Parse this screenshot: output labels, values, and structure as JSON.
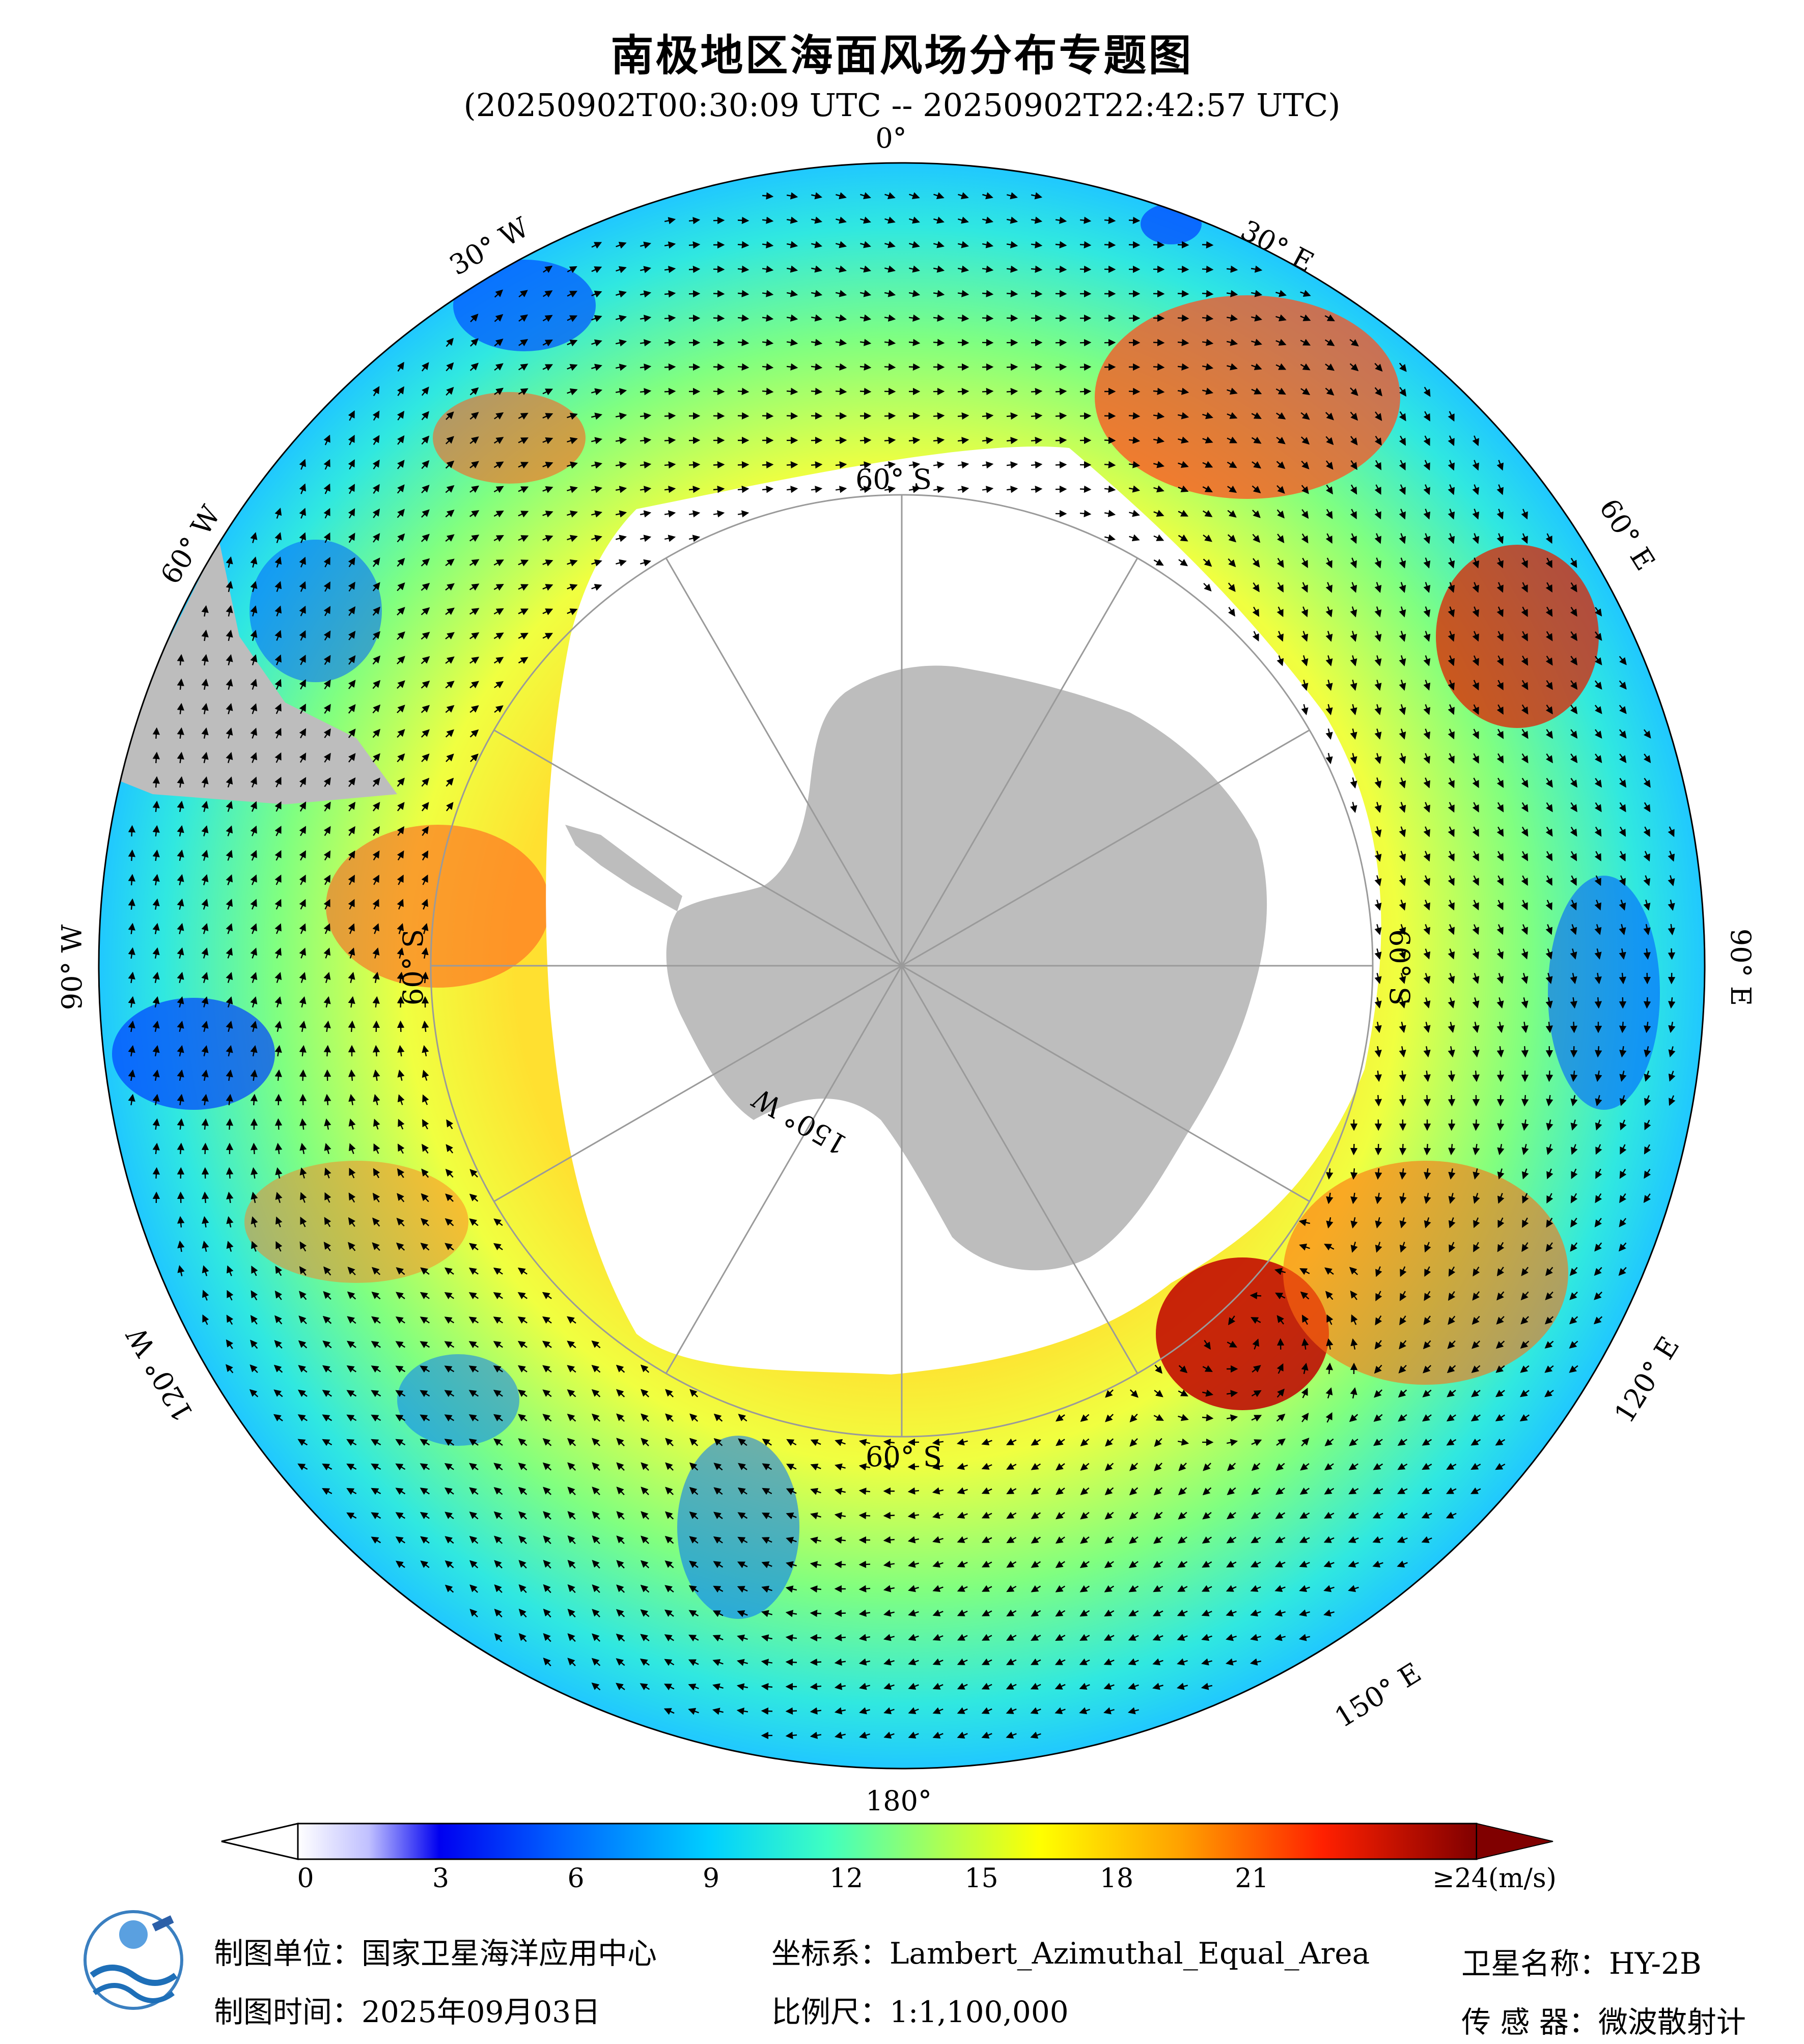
{
  "title": "南极地区海面风场分布专题图",
  "subtitle": "(20250902T00:30:09 UTC -- 20250902T22:42:57 UTC)",
  "graticule_labels": {
    "lon_0": "0°",
    "lon_30e": "30° E",
    "lon_60e": "60° E",
    "lon_90e": "90° E",
    "lon_120e": "120° E",
    "lon_150e": "150° E",
    "lon_180": "180°",
    "lon_150w": "150° W",
    "lon_120w": "120° W",
    "lon_90w": "90° W",
    "lon_60w": "60° W",
    "lon_30w": "30° W",
    "lat_60s_top": "60° S",
    "lat_60s_right": "60° S",
    "lat_60s_bottom": "60° S",
    "lat_60s_left": "60° S"
  },
  "colorbar": {
    "ticks": [
      "0",
      "3",
      "6",
      "9",
      "12",
      "15",
      "18",
      "21",
      "≥24(m/s)"
    ],
    "min": 0,
    "max": 24,
    "unit": "m/s",
    "colors": [
      "#ffffff",
      "#c8c8ff",
      "#0000ff",
      "#0060ff",
      "#00c8ff",
      "#30ffd0",
      "#a0ff60",
      "#ffff00",
      "#ffa000",
      "#ff3000",
      "#c00000",
      "#800000"
    ]
  },
  "footer": {
    "org_label": "制图单位：国家卫星海洋应用中心",
    "date_label": "制图时间：2025年09月03日",
    "crs_label": "坐标系：Lambert_Azimuthal_Equal_Area",
    "scale_label": "比例尺：1:1,100,000",
    "satellite_label": "卫星名称：HY-2B",
    "sensor_label": "传  感  器：微波散射计"
  },
  "colors": {
    "land": "#bdbdbd",
    "ice": "#ffffff",
    "arrow": "#000000",
    "graticule": "#9a9a9a"
  }
}
